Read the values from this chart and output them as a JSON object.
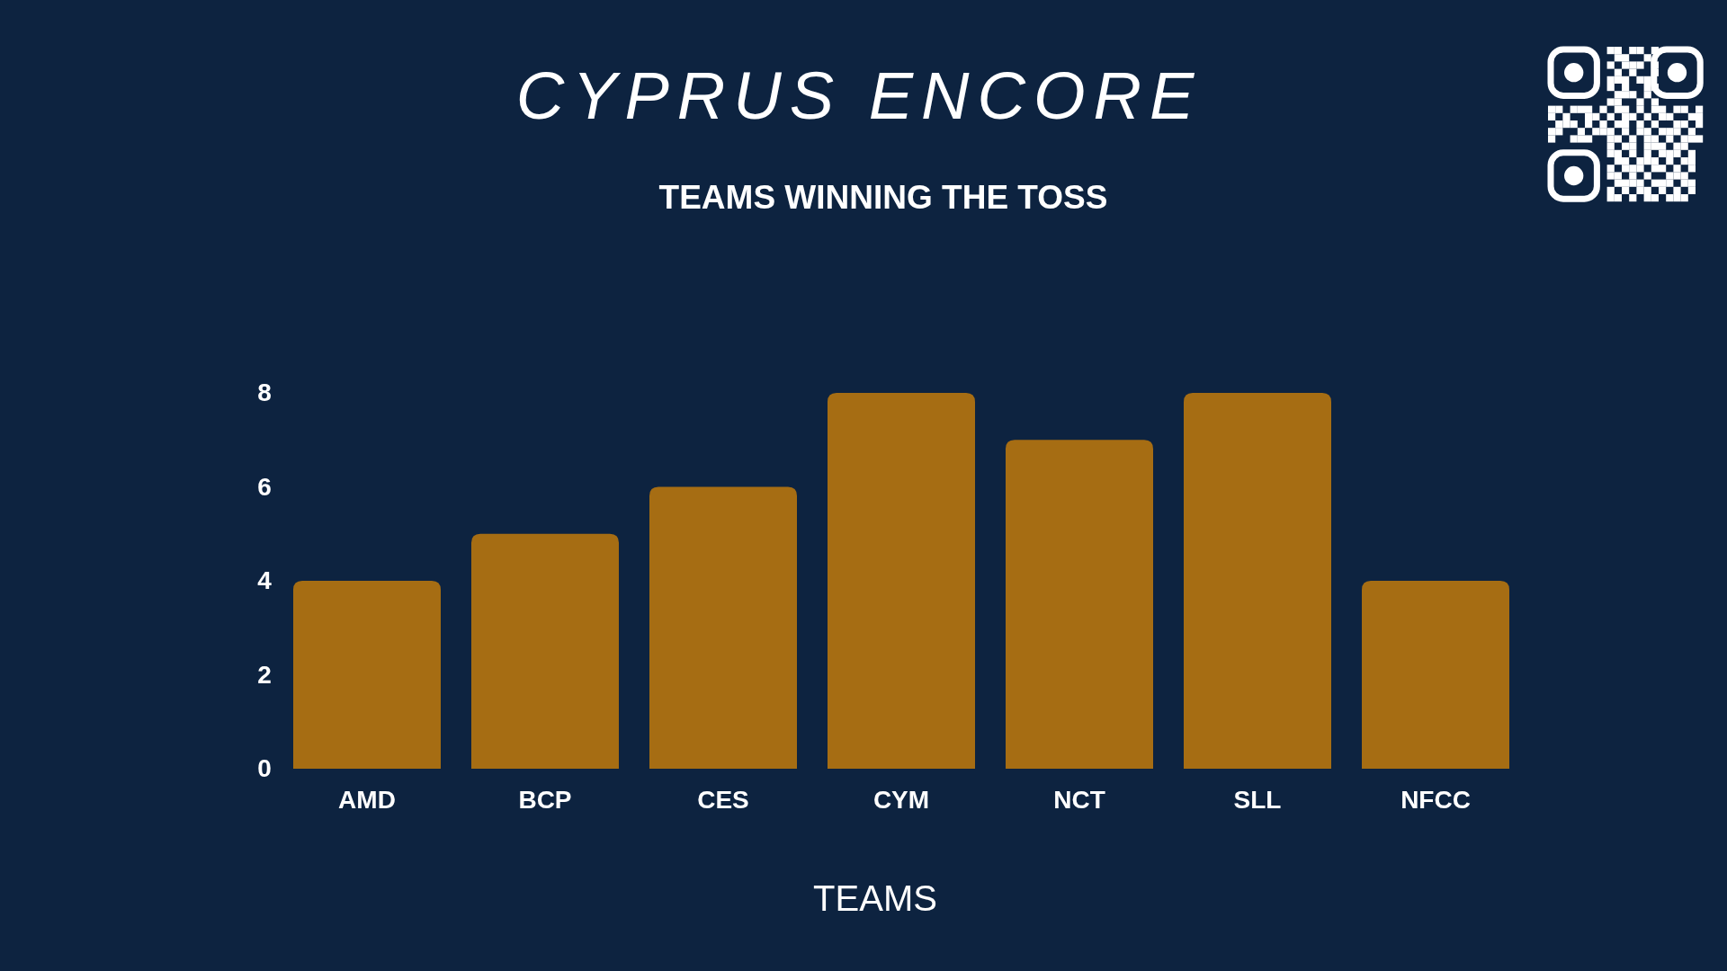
{
  "chart_data": {
    "type": "bar",
    "title": "CYPRUS ENCORE",
    "subtitle": "TEAMS WINNING THE TOSS",
    "xlabel": "TEAMS",
    "categories": [
      "AMD",
      "BCP",
      "CES",
      "CYM",
      "NCT",
      "SLL",
      "NFCC"
    ],
    "values": [
      4,
      5,
      6,
      8,
      7,
      8,
      4
    ],
    "color": "#a66d13",
    "ylim": [
      0,
      8
    ],
    "yticks": [
      0,
      2,
      4,
      6,
      8
    ]
  }
}
